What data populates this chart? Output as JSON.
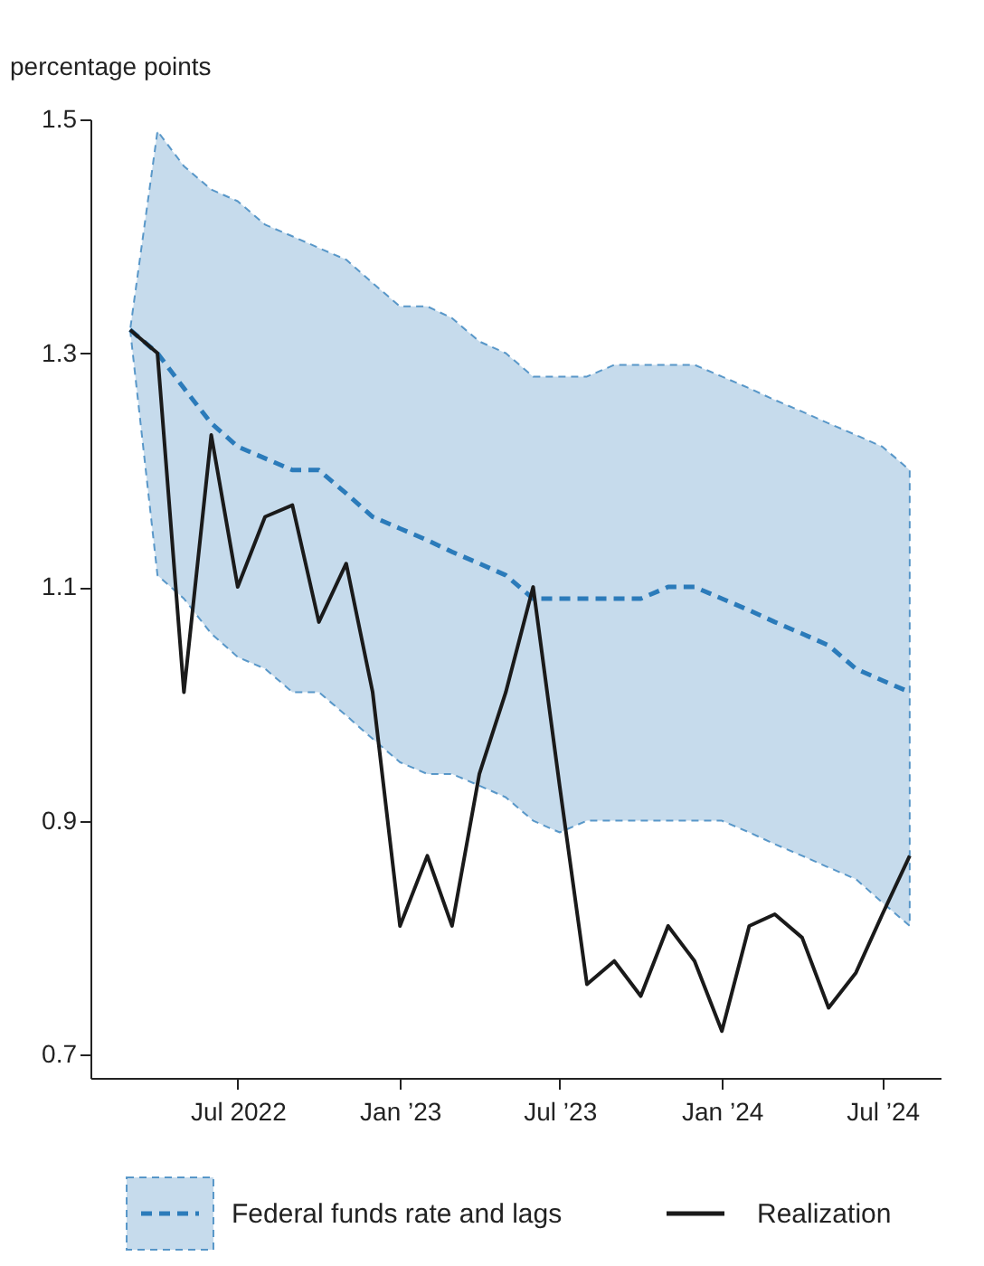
{
  "chart_data": {
    "type": "line",
    "ylabel": "percentage points",
    "x": [
      "2022-03",
      "2022-04",
      "2022-05",
      "2022-06",
      "2022-07",
      "2022-08",
      "2022-09",
      "2022-10",
      "2022-11",
      "2022-12",
      "2023-01",
      "2023-02",
      "2023-03",
      "2023-04",
      "2023-05",
      "2023-06",
      "2023-07",
      "2023-08",
      "2023-09",
      "2023-10",
      "2023-11",
      "2023-12",
      "2024-01",
      "2024-02",
      "2024-03",
      "2024-04",
      "2024-05",
      "2024-06",
      "2024-07",
      "2024-08"
    ],
    "series": [
      {
        "name": "Federal funds rate and lags",
        "color": "#2b7bba",
        "line_style": "dashed",
        "values": [
          1.32,
          1.3,
          1.27,
          1.24,
          1.22,
          1.21,
          1.2,
          1.2,
          1.18,
          1.16,
          1.15,
          1.14,
          1.13,
          1.12,
          1.11,
          1.09,
          1.09,
          1.09,
          1.09,
          1.09,
          1.1,
          1.1,
          1.09,
          1.08,
          1.07,
          1.06,
          1.05,
          1.03,
          1.02,
          1.01
        ],
        "lower": [
          1.32,
          1.11,
          1.09,
          1.06,
          1.04,
          1.03,
          1.01,
          1.01,
          0.99,
          0.97,
          0.95,
          0.94,
          0.94,
          0.93,
          0.92,
          0.9,
          0.89,
          0.9,
          0.9,
          0.9,
          0.9,
          0.9,
          0.9,
          0.89,
          0.88,
          0.87,
          0.86,
          0.85,
          0.83,
          0.81
        ],
        "upper": [
          1.32,
          1.49,
          1.46,
          1.44,
          1.43,
          1.41,
          1.4,
          1.39,
          1.38,
          1.36,
          1.34,
          1.34,
          1.33,
          1.31,
          1.3,
          1.28,
          1.28,
          1.28,
          1.29,
          1.29,
          1.29,
          1.29,
          1.28,
          1.27,
          1.26,
          1.25,
          1.24,
          1.23,
          1.22,
          1.2
        ]
      },
      {
        "name": "Realization",
        "color": "#1a1a1a",
        "line_style": "solid",
        "values": [
          1.32,
          1.3,
          1.01,
          1.23,
          1.1,
          1.16,
          1.17,
          1.07,
          1.12,
          1.01,
          0.81,
          0.87,
          0.81,
          0.94,
          1.01,
          1.1,
          0.93,
          0.76,
          0.78,
          0.75,
          0.81,
          0.78,
          0.72,
          0.81,
          0.82,
          0.8,
          0.74,
          0.77,
          0.82,
          0.87
        ]
      }
    ],
    "xlim": [
      "2022-01-15",
      "2024-09-05"
    ],
    "xticks": [
      {
        "value": "2022-07",
        "label": "Jul 2022"
      },
      {
        "value": "2023-01",
        "label": "Jan ’23"
      },
      {
        "value": "2023-07",
        "label": "Jul ’23"
      },
      {
        "value": "2024-01",
        "label": "Jan ’24"
      },
      {
        "value": "2024-07",
        "label": "Jul ’24"
      }
    ],
    "ylim": [
      0.68,
      1.5
    ],
    "yticks": [
      0.7,
      0.9,
      1.1,
      1.3,
      1.5
    ],
    "grid": false,
    "legend": "bottom"
  }
}
